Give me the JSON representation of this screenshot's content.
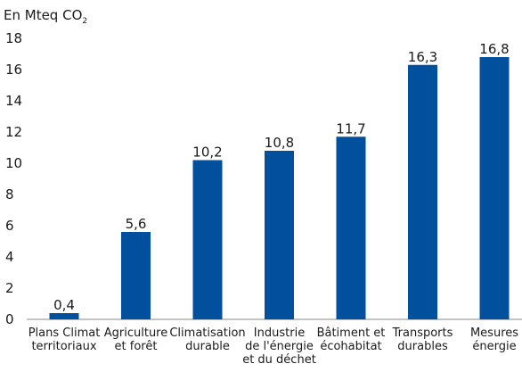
{
  "chart_data": {
    "type": "bar",
    "title": "",
    "xlabel": "",
    "ylabel": "En Mteq CO",
    "ylabel_subscript": "2",
    "ylim": [
      0,
      18
    ],
    "yticks": [
      0,
      2,
      4,
      6,
      8,
      10,
      12,
      14,
      16,
      18
    ],
    "grid": false,
    "legend": "none",
    "bar_color": "#00509e",
    "categories": [
      [
        "Plans Climat",
        "territoriaux"
      ],
      [
        "Agriculture",
        "et forêt"
      ],
      [
        "Climatisation",
        "durable"
      ],
      [
        "Industrie",
        "de l'énergie",
        "et du déchet"
      ],
      [
        "Bâtiment et",
        "écohabitat"
      ],
      [
        "Transports",
        "durables"
      ],
      [
        "Mesures",
        "énergie"
      ]
    ],
    "values": [
      0.4,
      5.6,
      10.2,
      10.8,
      11.7,
      16.3,
      16.8
    ],
    "value_labels": [
      "0,4",
      "5,6",
      "10,2",
      "10,8",
      "11,7",
      "16,3",
      "16,8"
    ]
  }
}
